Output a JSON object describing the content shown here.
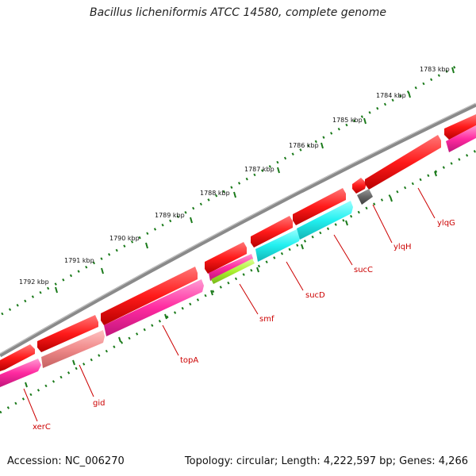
{
  "title": "Bacillus licheniformis ATCC 14580, complete genome",
  "accession": "Accession: NC_006270",
  "stats": "Topology: circular; Length: 4,222,597 bp; Genes: 4,266",
  "colors": {
    "backbone": "#8a8a8a",
    "tick": "#1a7a1a",
    "red": "#ff1a1a",
    "magenta": "#ff2aa0",
    "salmon": "#f08a8a",
    "cyan": "#22f0f0",
    "lime": "#aaf030",
    "gray": "#666666",
    "label": "#cc0000"
  },
  "kbp_labels": [
    "1783 kbp",
    "1784 kbp",
    "1785 kbp",
    "1786 kbp",
    "1787 kbp",
    "1788 kbp",
    "1789 kbp",
    "1790 kbp",
    "1791 kbp",
    "1792 kbp"
  ],
  "gene_labels": [
    "ylqG",
    "ylqH",
    "sucC",
    "sucD",
    "smf",
    "topA",
    "gid",
    "xerC"
  ]
}
